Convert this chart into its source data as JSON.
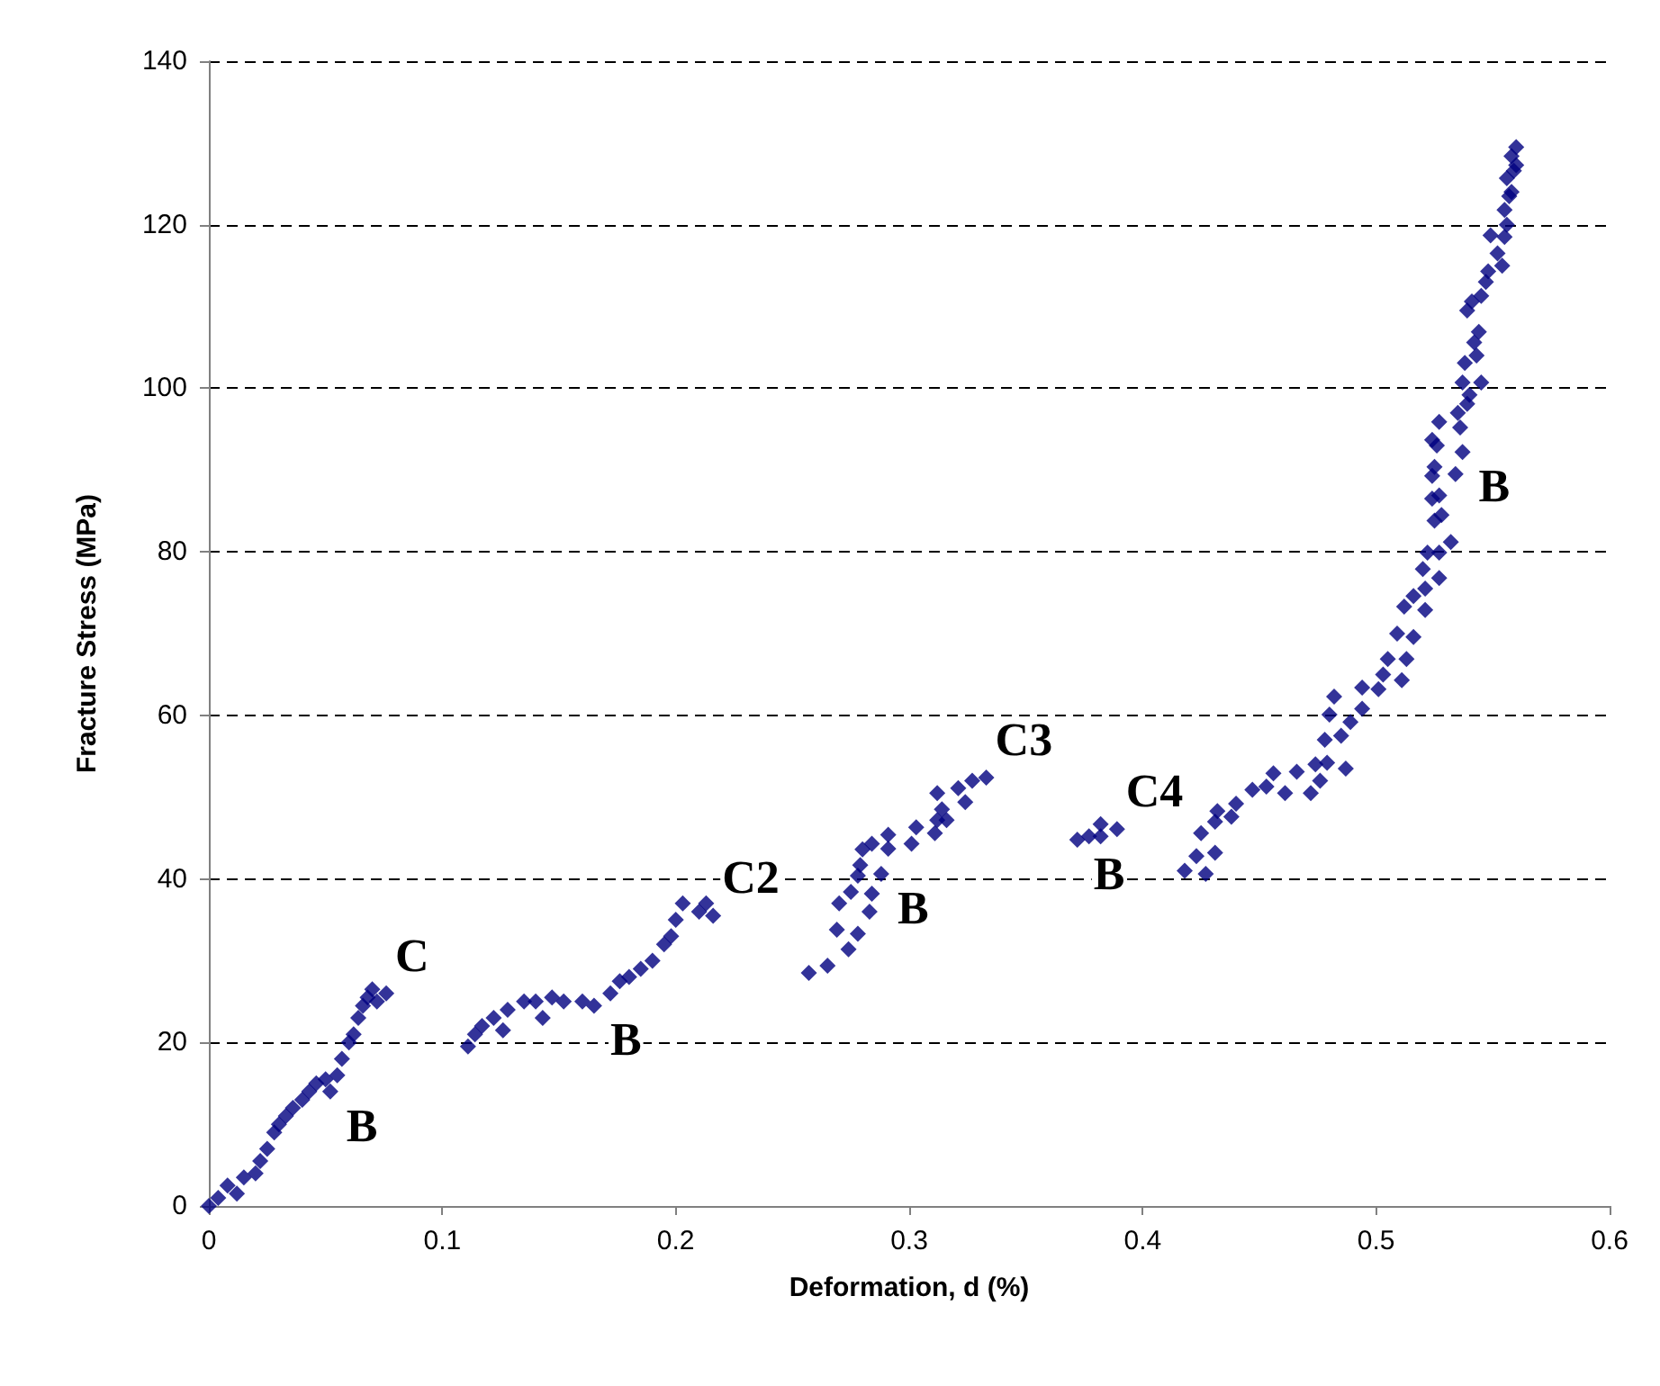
{
  "chart_data": {
    "type": "scatter",
    "xlabel": "Deformation, d (%)",
    "ylabel": "Fracture Stress (MPa)",
    "xlim": [
      0,
      0.6
    ],
    "xticks": [
      0,
      0.1,
      0.2,
      0.3,
      0.4,
      0.5,
      0.6
    ],
    "ylim": [
      0,
      140
    ],
    "yticks": [
      0,
      20,
      40,
      60,
      80,
      100,
      120,
      140
    ],
    "grid": "y",
    "marker": "diamond",
    "annotations": [
      {
        "text": "C",
        "x": 0.076,
        "y": 26
      },
      {
        "text": "B",
        "x": 0.052,
        "y": 14
      },
      {
        "text": "C2",
        "x": 0.216,
        "y": 35.5
      },
      {
        "text": "B",
        "x": 0.165,
        "y": 24.5
      },
      {
        "text": "C3",
        "x": 0.333,
        "y": 52.4
      },
      {
        "text": "B",
        "x": 0.288,
        "y": 40.6
      },
      {
        "text": "C4",
        "x": 0.389,
        "y": 46.1
      },
      {
        "text": "B",
        "x": 0.372,
        "y": 44.8
      },
      {
        "text": "B",
        "x": 0.537,
        "y": 92.2
      }
    ],
    "series": [
      {
        "color": "#000080",
        "x": [
          0,
          0.004,
          0.008,
          0.012,
          0.015,
          0.02,
          0.022,
          0.025,
          0.028,
          0.03,
          0.033,
          0.036,
          0.04,
          0.043,
          0.046,
          0.05,
          0.052,
          0.055,
          0.057,
          0.06,
          0.062,
          0.064,
          0.066,
          0.068,
          0.07,
          0.072,
          0.076,
          0.111,
          0.114,
          0.117,
          0.122,
          0.126,
          0.128,
          0.135,
          0.14,
          0.143,
          0.147,
          0.152,
          0.16,
          0.165,
          0.172,
          0.176,
          0.18,
          0.185,
          0.19,
          0.195,
          0.198,
          0.2,
          0.203,
          0.21,
          0.213,
          0.216,
          0.257,
          0.265,
          0.274,
          0.278,
          0.283,
          0.269,
          0.27,
          0.275,
          0.284,
          0.278,
          0.279,
          0.28,
          0.284,
          0.288,
          0.291,
          0.291,
          0.301,
          0.303,
          0.311,
          0.312,
          0.312,
          0.316,
          0.314,
          0.321,
          0.324,
          0.327,
          0.333,
          0.372,
          0.377,
          0.382,
          0.382,
          0.389,
          0.418,
          0.423,
          0.427,
          0.425,
          0.431,
          0.431,
          0.432,
          0.438,
          0.44,
          0.447,
          0.453,
          0.456,
          0.461,
          0.466,
          0.472,
          0.474,
          0.476,
          0.479,
          0.482,
          0.48,
          0.478,
          0.485,
          0.487,
          0.489,
          0.494,
          0.494,
          0.501,
          0.503,
          0.505,
          0.511,
          0.513,
          0.516,
          0.509,
          0.512,
          0.516,
          0.521,
          0.521,
          0.527,
          0.52,
          0.522,
          0.527,
          0.532,
          0.525,
          0.528,
          0.524,
          0.527,
          0.534,
          0.524,
          0.525,
          0.537,
          0.526,
          0.524,
          0.527,
          0.536,
          0.535,
          0.539,
          0.54,
          0.537,
          0.545,
          0.538,
          0.543,
          0.542,
          0.544,
          0.539,
          0.541,
          0.545,
          0.547,
          0.548,
          0.554,
          0.552,
          0.555,
          0.549,
          0.556,
          0.555,
          0.557,
          0.558,
          0.556,
          0.559,
          0.56,
          0.558,
          0.56
        ],
        "values": [
          0,
          1,
          2.5,
          1.5,
          3.5,
          4,
          5.5,
          7,
          9,
          10,
          11,
          12,
          13,
          14,
          15,
          15.5,
          14,
          16,
          18,
          20,
          21,
          23,
          24.5,
          25.5,
          26.5,
          25,
          26,
          19.5,
          21,
          22,
          23,
          21.5,
          24,
          25,
          25,
          23,
          25.5,
          25,
          25,
          24.5,
          26,
          27.5,
          28,
          29,
          30,
          32,
          33,
          35,
          37,
          36,
          37,
          35.5,
          28.5,
          29.4,
          31.4,
          33.3,
          36,
          33.8,
          37,
          38.4,
          38.2,
          40.4,
          41.7,
          43.6,
          44.3,
          40.6,
          45.4,
          43.7,
          44.3,
          46.3,
          45.6,
          47.2,
          50.5,
          47.2,
          48.5,
          51.1,
          49.4,
          52,
          52.4,
          44.8,
          45.2,
          46.7,
          45.2,
          46.1,
          41,
          42.8,
          40.6,
          45.6,
          43.2,
          47,
          48.3,
          47.6,
          49.2,
          50.9,
          51.3,
          52.9,
          50.5,
          53.1,
          50.5,
          54,
          52,
          54.2,
          62.3,
          60.1,
          57,
          57.5,
          53.5,
          59.2,
          60.8,
          63.4,
          63.2,
          65,
          66.9,
          64.3,
          66.9,
          69.6,
          70,
          73.3,
          74.6,
          72.9,
          75.5,
          76.8,
          77.9,
          79.9,
          79.9,
          81.2,
          83.8,
          84.5,
          86.5,
          86.9,
          89.5,
          89.3,
          90.4,
          92.2,
          93,
          93.7,
          95.9,
          95.2,
          97,
          98.1,
          99.2,
          100.7,
          100.7,
          103.1,
          104,
          105.6,
          106.9,
          109.5,
          110.6,
          111.3,
          113,
          114.3,
          115,
          116.5,
          118.5,
          118.7,
          120,
          121.8,
          123.5,
          124,
          125.7,
          126.6,
          127.3,
          128.4,
          129.5
        ]
      }
    ]
  }
}
